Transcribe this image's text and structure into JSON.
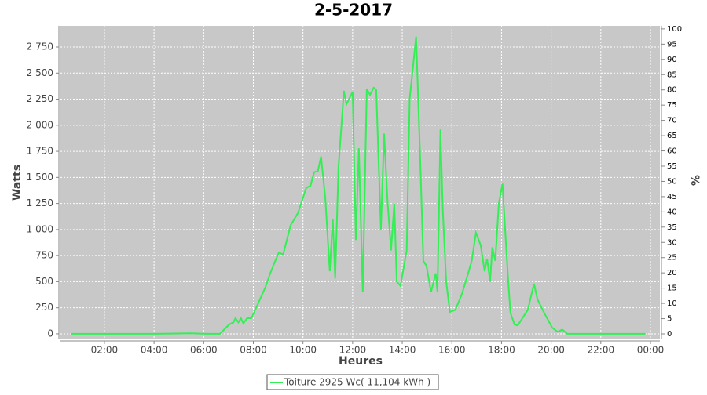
{
  "chart_data": {
    "type": "line",
    "title": "2-5-2017",
    "xlabel": "Heures",
    "ylabel": "Watts",
    "y2label": "%",
    "xlim": [
      0.23,
      24.38
    ],
    "xticks": [
      {
        "value": 2,
        "label": "02:00"
      },
      {
        "value": 4,
        "label": "04:00"
      },
      {
        "value": 6,
        "label": "06:00"
      },
      {
        "value": 8,
        "label": "08:00"
      },
      {
        "value": 10,
        "label": "10:00"
      },
      {
        "value": 12,
        "label": "12:00"
      },
      {
        "value": 14,
        "label": "14:00"
      },
      {
        "value": 16,
        "label": "16:00"
      },
      {
        "value": 18,
        "label": "18:00"
      },
      {
        "value": 20,
        "label": "20:00"
      },
      {
        "value": 22,
        "label": "22:00"
      },
      {
        "value": 24,
        "label": "00:00"
      }
    ],
    "ylim": [
      -53,
      2953
    ],
    "yticks": [
      0,
      250,
      500,
      750,
      {
        "value": 1000,
        "label": "1 000"
      },
      {
        "value": 1250,
        "label": "1 250"
      },
      {
        "value": 1500,
        "label": "1 500"
      },
      {
        "value": 1750,
        "label": "1 750"
      },
      {
        "value": 2000,
        "label": "2 000"
      },
      {
        "value": 2250,
        "label": "2 250"
      },
      {
        "value": 2500,
        "label": "2 500"
      },
      {
        "value": 2750,
        "label": "2 750"
      }
    ],
    "y2lim": [
      -1.8,
      101
    ],
    "y2ticks": [
      0,
      5,
      10,
      15,
      20,
      25,
      30,
      35,
      40,
      45,
      50,
      55,
      60,
      65,
      70,
      75,
      80,
      85,
      90,
      95,
      100
    ],
    "grid": true,
    "legend": "bottom",
    "x": [
      0.64,
      2,
      4,
      5.5,
      6.2,
      6.65,
      7.03,
      7.2,
      7.28,
      7.4,
      7.5,
      7.6,
      7.75,
      7.92,
      8.17,
      8.49,
      8.68,
      8.85,
      9.03,
      9.2,
      9.5,
      9.8,
      10.13,
      10.3,
      10.45,
      10.6,
      10.73,
      10.9,
      11.08,
      11.2,
      11.3,
      11.43,
      11.65,
      11.75,
      12.0,
      12.13,
      12.25,
      12.41,
      12.57,
      12.7,
      12.85,
      12.95,
      13.14,
      13.27,
      13.4,
      13.55,
      13.68,
      13.78,
      13.93,
      14.18,
      14.3,
      14.56,
      14.72,
      14.85,
      14.98,
      15.16,
      15.35,
      15.42,
      15.54,
      15.63,
      15.77,
      15.92,
      16.14,
      16.4,
      16.62,
      16.8,
      16.97,
      17.16,
      17.32,
      17.42,
      17.54,
      17.63,
      17.75,
      17.89,
      18.04,
      18.17,
      18.27,
      18.36,
      18.52,
      18.65,
      19.06,
      19.31,
      19.45,
      19.72,
      20.04,
      20.26,
      20.45,
      20.65,
      21.5,
      23.8
    ],
    "series": [
      {
        "name": "Toiture 2925 Wc( 11,104 kWh )",
        "color": "#33ee55",
        "values": [
          0,
          0,
          0,
          5,
          0,
          0,
          90,
          110,
          150,
          110,
          150,
          100,
          150,
          150,
          280,
          450,
          580,
          680,
          780,
          760,
          1040,
          1160,
          1400,
          1420,
          1550,
          1560,
          1700,
          1300,
          600,
          1100,
          530,
          1600,
          2330,
          2200,
          2320,
          900,
          1780,
          400,
          2350,
          2290,
          2360,
          2340,
          1000,
          1920,
          1300,
          800,
          1250,
          500,
          460,
          800,
          2250,
          2850,
          1700,
          700,
          650,
          400,
          580,
          400,
          1960,
          1200,
          500,
          210,
          230,
          380,
          550,
          700,
          970,
          850,
          600,
          720,
          500,
          830,
          700,
          1250,
          1440,
          900,
          500,
          200,
          90,
          80,
          230,
          480,
          330,
          200,
          60,
          20,
          40,
          0,
          0,
          0
        ]
      }
    ]
  }
}
